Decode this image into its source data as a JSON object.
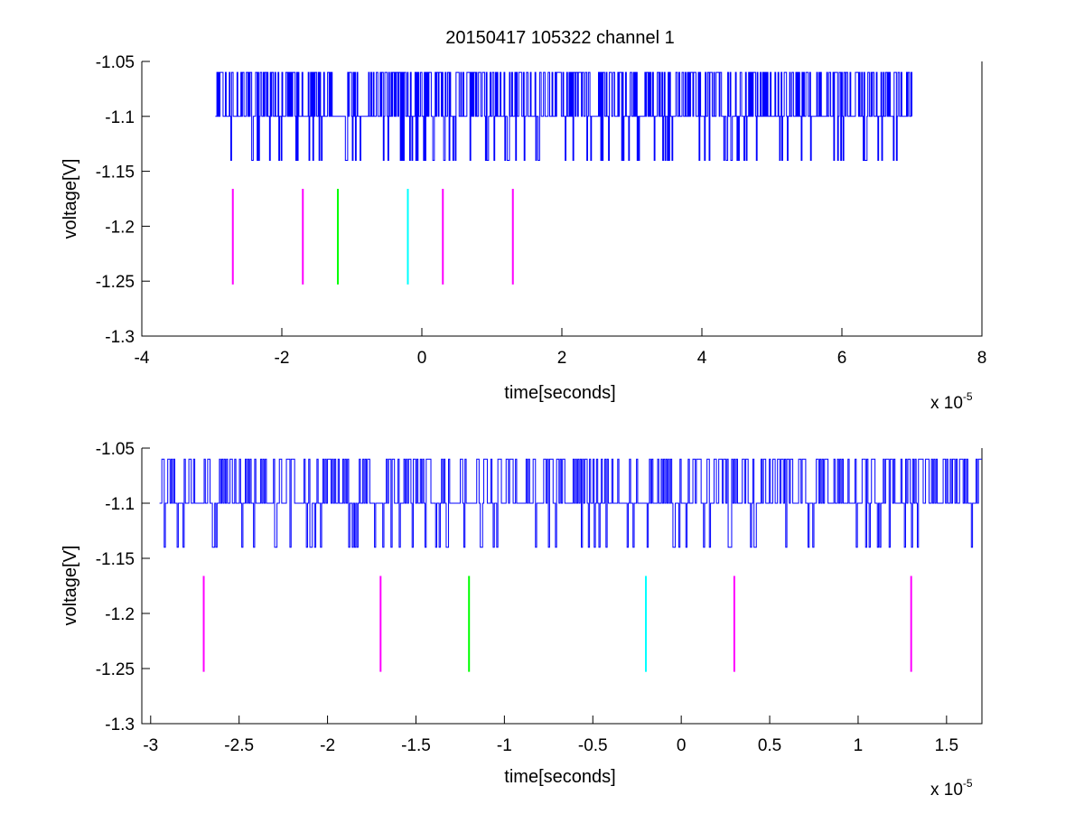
{
  "title": "20150417 105322 channel 1",
  "colors": {
    "signal": "#0000ff",
    "magenta": "#ff00ff",
    "green": "#00ff00",
    "cyan": "#00ffff",
    "axis": "#000000"
  },
  "chart_data": [
    {
      "type": "line",
      "xlabel": "time[seconds]",
      "ylabel": "voltage[V]",
      "x_scale_label": "x 10",
      "x_scale_exponent": "-5",
      "xlim": [
        -4,
        8
      ],
      "ylim": [
        -1.3,
        -1.05
      ],
      "x_ticks": [
        -4,
        -2,
        0,
        2,
        4,
        6,
        8
      ],
      "x_tick_labels": [
        "-4",
        "-2",
        "0",
        "2",
        "4",
        "6",
        "8"
      ],
      "y_ticks": [
        -1.05,
        -1.1,
        -1.15,
        -1.2,
        -1.25,
        -1.3
      ],
      "y_tick_labels": [
        "-1.05",
        "-1.1",
        "-1.15",
        "-1.2",
        "-1.25",
        "-1.3"
      ],
      "grid": false,
      "series": [
        {
          "kind": "signal",
          "x_range": [
            -2.95,
            7.0
          ],
          "levels": [
            -1.06,
            -1.1,
            -1.14
          ],
          "baseline": -1.1,
          "color": "#0000ff"
        }
      ],
      "markers": [
        {
          "x": -2.7,
          "y_range": [
            -1.253,
            -1.166
          ],
          "color": "#ff00ff"
        },
        {
          "x": -1.7,
          "y_range": [
            -1.253,
            -1.166
          ],
          "color": "#ff00ff"
        },
        {
          "x": -1.2,
          "y_range": [
            -1.253,
            -1.166
          ],
          "color": "#00ff00"
        },
        {
          "x": -0.2,
          "y_range": [
            -1.253,
            -1.166
          ],
          "color": "#00ffff"
        },
        {
          "x": 0.3,
          "y_range": [
            -1.253,
            -1.166
          ],
          "color": "#ff00ff"
        },
        {
          "x": 1.3,
          "y_range": [
            -1.253,
            -1.166
          ],
          "color": "#ff00ff"
        }
      ]
    },
    {
      "type": "line",
      "xlabel": "time[seconds]",
      "ylabel": "voltage[V]",
      "x_scale_label": "x 10",
      "x_scale_exponent": "-5",
      "xlim": [
        -3.05,
        1.7
      ],
      "ylim": [
        -1.3,
        -1.05
      ],
      "x_ticks": [
        -3,
        -2.5,
        -2,
        -1.5,
        -1,
        -0.5,
        0,
        0.5,
        1,
        1.5
      ],
      "x_tick_labels": [
        "-3",
        "-2.5",
        "-2",
        "-1.5",
        "-1",
        "-0.5",
        "0",
        "0.5",
        "1",
        "1.5"
      ],
      "y_ticks": [
        -1.05,
        -1.1,
        -1.15,
        -1.2,
        -1.25,
        -1.3
      ],
      "y_tick_labels": [
        "-1.05",
        "-1.1",
        "-1.15",
        "-1.2",
        "-1.25",
        "-1.3"
      ],
      "grid": false,
      "series": [
        {
          "kind": "signal",
          "x_range": [
            -2.95,
            1.7
          ],
          "levels": [
            -1.06,
            -1.1,
            -1.14
          ],
          "baseline": -1.1,
          "color": "#0000ff"
        }
      ],
      "markers": [
        {
          "x": -2.7,
          "y_range": [
            -1.253,
            -1.166
          ],
          "color": "#ff00ff"
        },
        {
          "x": -1.7,
          "y_range": [
            -1.253,
            -1.166
          ],
          "color": "#ff00ff"
        },
        {
          "x": -1.2,
          "y_range": [
            -1.253,
            -1.166
          ],
          "color": "#00ff00"
        },
        {
          "x": -0.2,
          "y_range": [
            -1.253,
            -1.166
          ],
          "color": "#00ffff"
        },
        {
          "x": 0.3,
          "y_range": [
            -1.253,
            -1.166
          ],
          "color": "#ff00ff"
        },
        {
          "x": 1.3,
          "y_range": [
            -1.253,
            -1.166
          ],
          "color": "#ff00ff"
        }
      ]
    }
  ]
}
